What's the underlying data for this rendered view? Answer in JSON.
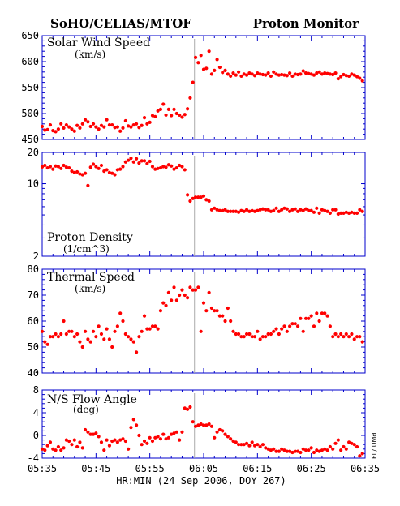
{
  "header": {
    "left_title": "SoHO/CELIAS/MTOF",
    "right_title": "Proton Monitor"
  },
  "x_axis": {
    "label": "HR:MIN (24 Sep 2006, DOY 267)",
    "tick_labels": [
      "05:35",
      "05:45",
      "05:55",
      "06:05",
      "06:15",
      "06:25",
      "06:35"
    ],
    "range_minutes": [
      335,
      395
    ],
    "shock_time_minutes": 363.3
  },
  "credit": "Fl / UMd",
  "colors": {
    "data": "#ff0000",
    "axes": "#0000cc",
    "shock_line": "#aaaaaa"
  },
  "chart_data": [
    {
      "type": "scatter",
      "title": "Solar Wind Speed",
      "unit": "(km/s)",
      "ylim": [
        450,
        650
      ],
      "yticks": [
        450,
        500,
        550,
        600,
        650
      ],
      "scale": "linear",
      "x": [
        335.0,
        335.5,
        336.0,
        336.5,
        337.0,
        337.5,
        338.0,
        338.5,
        339.0,
        339.5,
        340.0,
        340.5,
        341.0,
        341.5,
        342.0,
        342.5,
        343.0,
        343.5,
        344.0,
        344.5,
        345.0,
        345.5,
        346.0,
        346.5,
        347.0,
        347.5,
        348.0,
        348.5,
        349.0,
        349.5,
        350.0,
        350.5,
        351.0,
        351.5,
        352.0,
        352.5,
        353.0,
        353.5,
        354.0,
        354.5,
        355.0,
        355.5,
        356.0,
        356.5,
        357.0,
        357.5,
        358.0,
        358.5,
        359.0,
        359.5,
        360.0,
        360.5,
        361.0,
        361.5,
        362.0,
        362.5,
        363.0,
        363.5,
        364.0,
        364.5,
        365.0,
        365.5,
        366.0,
        366.5,
        367.0,
        367.5,
        368.0,
        368.5,
        369.0,
        369.5,
        370.0,
        370.5,
        371.0,
        371.5,
        372.0,
        372.5,
        373.0,
        373.5,
        374.0,
        374.5,
        375.0,
        375.5,
        376.0,
        376.5,
        377.0,
        377.5,
        378.0,
        378.5,
        379.0,
        379.5,
        380.0,
        380.5,
        381.0,
        381.5,
        382.0,
        382.5,
        383.0,
        383.5,
        384.0,
        384.5,
        385.0,
        385.5,
        386.0,
        386.5,
        387.0,
        387.5,
        388.0,
        388.5,
        389.0,
        389.5,
        390.0,
        390.5,
        391.0,
        391.5,
        392.0,
        392.5,
        393.0,
        393.5,
        394.0,
        394.5
      ],
      "y": [
        475,
        468,
        469,
        478,
        467,
        465,
        470,
        480,
        472,
        478,
        474,
        470,
        466,
        477,
        472,
        480,
        488,
        484,
        475,
        480,
        474,
        470,
        477,
        474,
        488,
        478,
        478,
        473,
        474,
        466,
        472,
        486,
        476,
        474,
        478,
        480,
        473,
        477,
        492,
        480,
        483,
        496,
        494,
        505,
        508,
        518,
        497,
        508,
        496,
        508,
        500,
        497,
        493,
        498,
        509,
        530,
        560,
        608,
        598,
        612,
        585,
        587,
        620,
        576,
        583,
        604,
        589,
        579,
        583,
        576,
        572,
        578,
        574,
        580,
        572,
        576,
        574,
        578,
        576,
        573,
        578,
        576,
        575,
        574,
        578,
        572,
        580,
        576,
        574,
        575,
        574,
        573,
        578,
        572,
        576,
        575,
        576,
        582,
        578,
        577,
        576,
        574,
        578,
        580,
        576,
        578,
        577,
        576,
        575,
        578,
        567,
        571,
        575,
        573,
        572,
        576,
        574,
        571,
        568,
        563
      ]
    },
    {
      "type": "scatter",
      "title": "Proton Density",
      "unit": "(1/cm^3)",
      "ylim": [
        2,
        20
      ],
      "yticks": [
        2,
        10,
        20
      ],
      "scale": "log",
      "x": [
        335.0,
        335.5,
        336.0,
        336.5,
        337.0,
        337.5,
        338.0,
        338.5,
        339.0,
        339.5,
        340.0,
        340.5,
        341.0,
        341.5,
        342.0,
        342.5,
        343.0,
        343.5,
        344.0,
        344.5,
        345.0,
        345.5,
        346.0,
        346.5,
        347.0,
        347.5,
        348.0,
        348.5,
        349.0,
        349.5,
        350.0,
        350.5,
        351.0,
        351.5,
        352.0,
        352.5,
        353.0,
        353.5,
        354.0,
        354.5,
        355.0,
        355.5,
        356.0,
        356.5,
        357.0,
        357.5,
        358.0,
        358.5,
        359.0,
        359.5,
        360.0,
        360.5,
        361.0,
        361.5,
        362.0,
        362.5,
        363.0,
        363.5,
        364.0,
        364.5,
        365.0,
        365.5,
        366.0,
        366.5,
        367.0,
        367.5,
        368.0,
        368.5,
        369.0,
        369.5,
        370.0,
        370.5,
        371.0,
        371.5,
        372.0,
        372.5,
        373.0,
        373.5,
        374.0,
        374.5,
        375.0,
        375.5,
        376.0,
        376.5,
        377.0,
        377.5,
        378.0,
        378.5,
        379.0,
        379.5,
        380.0,
        380.5,
        381.0,
        381.5,
        382.0,
        382.5,
        383.0,
        383.5,
        384.0,
        384.5,
        385.0,
        385.5,
        386.0,
        386.5,
        387.0,
        387.5,
        388.0,
        388.5,
        389.0,
        389.5,
        390.0,
        390.5,
        391.0,
        391.5,
        392.0,
        392.5,
        393.0,
        393.5,
        394.0,
        394.5
      ],
      "y": [
        14.5,
        15.0,
        14.2,
        14.6,
        13.8,
        14.8,
        14.6,
        14.0,
        15.0,
        14.4,
        14.2,
        13.2,
        12.8,
        13.0,
        12.4,
        12.2,
        12.6,
        9.6,
        14.4,
        15.4,
        14.6,
        14.0,
        15.0,
        13.2,
        13.6,
        12.8,
        12.6,
        12.2,
        13.6,
        13.8,
        14.6,
        16.2,
        16.8,
        17.6,
        16.2,
        17.4,
        15.8,
        16.6,
        16.6,
        15.6,
        16.4,
        14.6,
        13.8,
        14.0,
        14.2,
        14.6,
        14.4,
        15.2,
        14.8,
        13.8,
        14.2,
        15.0,
        14.6,
        13.6,
        7.8,
        6.8,
        7.2,
        7.4,
        7.4,
        7.4,
        7.6,
        7.0,
        6.8,
        5.6,
        5.8,
        5.6,
        5.5,
        5.5,
        5.6,
        5.4,
        5.4,
        5.4,
        5.4,
        5.3,
        5.5,
        5.4,
        5.6,
        5.4,
        5.5,
        5.4,
        5.5,
        5.6,
        5.7,
        5.6,
        5.6,
        5.4,
        5.5,
        5.8,
        5.4,
        5.6,
        5.8,
        5.7,
        5.4,
        5.6,
        5.7,
        5.4,
        5.6,
        5.5,
        5.7,
        5.5,
        5.5,
        5.3,
        5.8,
        5.2,
        5.6,
        5.5,
        5.4,
        5.2,
        5.6,
        5.6,
        5.1,
        5.2,
        5.2,
        5.3,
        5.2,
        5.3,
        5.2,
        5.2,
        5.6,
        5.4
      ]
    },
    {
      "type": "scatter",
      "title": "Thermal Speed",
      "unit": "(km/s)",
      "ylim": [
        40,
        80
      ],
      "yticks": [
        40,
        50,
        60,
        70,
        80
      ],
      "scale": "linear",
      "x": [
        335.0,
        335.5,
        336.0,
        336.5,
        337.0,
        337.5,
        338.0,
        338.5,
        339.0,
        339.5,
        340.0,
        340.5,
        341.0,
        341.5,
        342.0,
        342.5,
        343.0,
        343.5,
        344.0,
        344.5,
        345.0,
        345.5,
        346.0,
        346.5,
        347.0,
        347.5,
        348.0,
        348.5,
        349.0,
        349.5,
        350.0,
        350.5,
        351.0,
        351.5,
        352.0,
        352.5,
        353.0,
        353.5,
        354.0,
        354.5,
        355.0,
        355.5,
        356.0,
        356.5,
        357.0,
        357.5,
        358.0,
        358.5,
        359.0,
        359.5,
        360.0,
        360.5,
        361.0,
        361.5,
        362.0,
        362.5,
        363.0,
        363.5,
        364.0,
        364.5,
        365.0,
        365.5,
        366.0,
        366.5,
        367.0,
        367.5,
        368.0,
        368.5,
        369.0,
        369.5,
        370.0,
        370.5,
        371.0,
        371.5,
        372.0,
        372.5,
        373.0,
        373.5,
        374.0,
        374.5,
        375.0,
        375.5,
        376.0,
        376.5,
        377.0,
        377.5,
        378.0,
        378.5,
        379.0,
        379.5,
        380.0,
        380.5,
        381.0,
        381.5,
        382.0,
        382.5,
        383.0,
        383.5,
        384.0,
        384.5,
        385.0,
        385.5,
        386.0,
        386.5,
        387.0,
        387.5,
        388.0,
        388.5,
        389.0,
        389.5,
        390.0,
        390.5,
        391.0,
        391.5,
        392.0,
        392.5,
        393.0,
        393.5,
        394.0,
        394.5
      ],
      "y": [
        56,
        52,
        51,
        54,
        54,
        55,
        54,
        55,
        60,
        55,
        56,
        56,
        54,
        55,
        52,
        50,
        56,
        53,
        52,
        56,
        54,
        58,
        55,
        53,
        57,
        53,
        50,
        56,
        58,
        63,
        60,
        55,
        54,
        53,
        52,
        48,
        54,
        56,
        62,
        57,
        57,
        58,
        58,
        57,
        64,
        67,
        66,
        71,
        68,
        73,
        68,
        70,
        72,
        70,
        69,
        73,
        72,
        72,
        73,
        56,
        67,
        64,
        71,
        65,
        64,
        64,
        62,
        62,
        60,
        65,
        60,
        56,
        55,
        55,
        54,
        54,
        55,
        55,
        54,
        54,
        56,
        53,
        54,
        54,
        55,
        55,
        56,
        57,
        55,
        57,
        58,
        56,
        58,
        59,
        59,
        58,
        61,
        56,
        61,
        61,
        62,
        58,
        63,
        60,
        63,
        63,
        62,
        58,
        54,
        55,
        54,
        55,
        54,
        55,
        54,
        55,
        53,
        54,
        54,
        52
      ],
      "y_override_note": ""
    },
    {
      "type": "scatter",
      "title": "N/S Flow Angle",
      "unit": "(deg)",
      "ylim": [
        -4,
        8
      ],
      "yticks": [
        -4,
        0,
        4,
        8
      ],
      "scale": "linear",
      "x": [
        335.0,
        335.5,
        336.0,
        336.5,
        337.0,
        337.5,
        338.0,
        338.5,
        339.0,
        339.5,
        340.0,
        340.5,
        341.0,
        341.5,
        342.0,
        342.5,
        343.0,
        343.5,
        344.0,
        344.5,
        345.0,
        345.5,
        346.0,
        346.5,
        347.0,
        347.5,
        348.0,
        348.5,
        349.0,
        349.5,
        350.0,
        350.5,
        351.0,
        351.5,
        352.0,
        352.5,
        353.0,
        353.5,
        354.0,
        354.5,
        355.0,
        355.5,
        356.0,
        356.5,
        357.0,
        357.5,
        358.0,
        358.5,
        359.0,
        359.5,
        360.0,
        360.5,
        361.0,
        361.5,
        362.0,
        362.5,
        363.0,
        363.5,
        364.0,
        364.5,
        365.0,
        365.5,
        366.0,
        366.5,
        367.0,
        367.5,
        368.0,
        368.5,
        369.0,
        369.5,
        370.0,
        370.5,
        371.0,
        371.5,
        372.0,
        372.5,
        373.0,
        373.5,
        374.0,
        374.5,
        375.0,
        375.5,
        376.0,
        376.5,
        377.0,
        377.5,
        378.0,
        378.5,
        379.0,
        379.5,
        380.0,
        380.5,
        381.0,
        381.5,
        382.0,
        382.5,
        383.0,
        383.5,
        384.0,
        384.5,
        385.0,
        385.5,
        386.0,
        386.5,
        387.0,
        387.5,
        388.0,
        388.5,
        389.0,
        389.5,
        390.0,
        390.5,
        391.0,
        391.5,
        392.0,
        392.5,
        393.0,
        393.5,
        394.0,
        394.5
      ],
      "y": [
        -2.4,
        -2.6,
        -1.8,
        -1.2,
        -2.4,
        -2.6,
        -2.0,
        -2.6,
        -2.2,
        -0.8,
        -1.0,
        -1.6,
        -0.8,
        -2.0,
        -1.2,
        -2.2,
        1.0,
        0.6,
        0.2,
        0.2,
        0.4,
        -0.2,
        -1.2,
        -2.6,
        -0.8,
        -1.8,
        -1.0,
        -0.8,
        -1.2,
        -0.8,
        -0.6,
        -1.0,
        -2.4,
        1.4,
        2.8,
        1.8,
        0.0,
        -1.6,
        -1.0,
        -1.4,
        -0.4,
        -1.0,
        -0.4,
        -0.2,
        -0.6,
        0.2,
        -0.6,
        -0.4,
        0.2,
        0.4,
        0.6,
        -0.8,
        0.6,
        4.8,
        4.6,
        5.0,
        2.4,
        1.6,
        1.8,
        2.0,
        1.8,
        1.8,
        2.0,
        1.6,
        -0.4,
        0.6,
        1.0,
        0.8,
        0.2,
        -0.2,
        -0.6,
        -1.0,
        -1.2,
        -1.6,
        -1.6,
        -1.6,
        -1.4,
        -1.8,
        -1.2,
        -1.8,
        -1.6,
        -2.0,
        -1.6,
        -2.2,
        -2.4,
        -2.6,
        -2.4,
        -2.8,
        -2.8,
        -2.4,
        -2.6,
        -2.8,
        -2.8,
        -3.0,
        -2.8,
        -2.8,
        -3.0,
        -2.4,
        -2.6,
        -2.6,
        -2.2,
        -3.0,
        -2.6,
        -2.8,
        -2.6,
        -2.4,
        -2.6,
        -2.0,
        -2.4,
        -1.4,
        -0.8,
        -2.6,
        -2.0,
        -2.4,
        -1.2,
        -1.4,
        -1.6,
        -2.0,
        -3.6,
        -3.2
      ]
    }
  ]
}
